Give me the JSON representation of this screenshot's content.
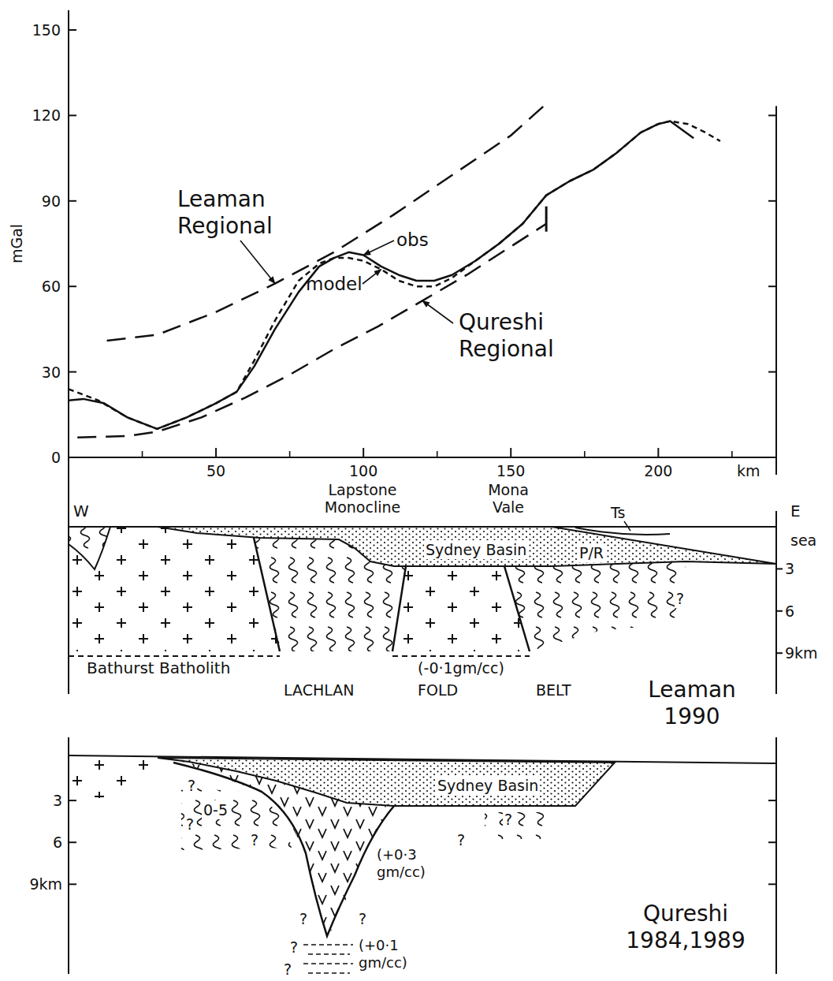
{
  "chart_data": {
    "type": "line",
    "y_label": "mGal",
    "x_label": "km",
    "xlim": [
      0,
      240
    ],
    "ylim": [
      0,
      150
    ],
    "xticks": [
      50,
      100,
      150,
      200
    ],
    "yticks": [
      0,
      30,
      60,
      90,
      120,
      150
    ],
    "series": [
      {
        "name": "obs",
        "color": "#111111",
        "line_style": "solid",
        "x": [
          0,
          5,
          12,
          20,
          30,
          40,
          50,
          57,
          63,
          70,
          78,
          85,
          90,
          95,
          100,
          106,
          112,
          118,
          124,
          130,
          138,
          146,
          154,
          162,
          170,
          178,
          186,
          194,
          200,
          204,
          212
        ],
        "values": [
          20,
          20.5,
          19,
          14,
          10,
          14,
          19,
          23,
          32,
          45,
          58,
          67,
          70,
          72,
          71,
          67,
          64,
          62,
          62,
          64,
          69,
          75,
          82,
          92,
          97,
          101,
          107,
          114,
          117,
          118,
          112
        ]
      },
      {
        "name": "model",
        "color": "#111111",
        "line_style": "dashed",
        "x": [
          0,
          10,
          20,
          30,
          40,
          50,
          57,
          63,
          70,
          78,
          85,
          90,
          95,
          100,
          106,
          112,
          118,
          124,
          130,
          138,
          146,
          154,
          162,
          170,
          178,
          186,
          194,
          200,
          204,
          210,
          216,
          221
        ],
        "values": [
          24,
          20,
          14,
          10,
          14,
          19,
          23,
          34,
          48,
          62,
          68,
          70,
          70,
          69,
          66,
          62,
          60,
          60,
          63,
          69,
          75,
          82,
          92,
          97,
          101,
          107,
          114,
          117,
          118,
          117,
          114,
          111
        ]
      },
      {
        "name": "Leaman Regional",
        "color": "#111111",
        "line_style": "long-dash",
        "x": [
          13,
          30,
          50,
          70,
          90,
          110,
          130,
          150,
          163
        ],
        "values": [
          41,
          43,
          51,
          61,
          72,
          85,
          99,
          113,
          125
        ]
      },
      {
        "name": "Qureshi Regional",
        "color": "#111111",
        "line_style": "long-dash",
        "x": [
          3,
          20,
          30,
          45,
          60,
          75,
          90,
          105,
          120,
          135,
          150,
          162
        ],
        "values": [
          7,
          7.5,
          9,
          14,
          21,
          29,
          38,
          46,
          55,
          64,
          74,
          82
        ]
      }
    ]
  },
  "sections": [
    {
      "title": "Leaman 1990",
      "west": "W",
      "east": "E",
      "sea": "sea",
      "places": [
        "Lapstone Monocline",
        "Mona Vale"
      ],
      "basin": "Sydney Basin",
      "units": [
        "P/R",
        "Ts"
      ],
      "batholith": "Bathurst Batholith",
      "belt": [
        "LACHLAN",
        "FOLD",
        "BELT"
      ],
      "density": "(-0·1gm/cc)",
      "query": "?",
      "depth_ticks": [
        3,
        6,
        {
          "value": 9,
          "label": "9km"
        }
      ]
    },
    {
      "title": "Qureshi 1984,1989",
      "basin": "Sydney Basin",
      "thickness": "0-5",
      "densities": [
        "(+0·3 gm/cc)",
        "(+0·1 gm/cc)"
      ],
      "query": "?",
      "depth_ticks": [
        3,
        6,
        {
          "value": 9,
          "label": "9km"
        }
      ]
    }
  ]
}
